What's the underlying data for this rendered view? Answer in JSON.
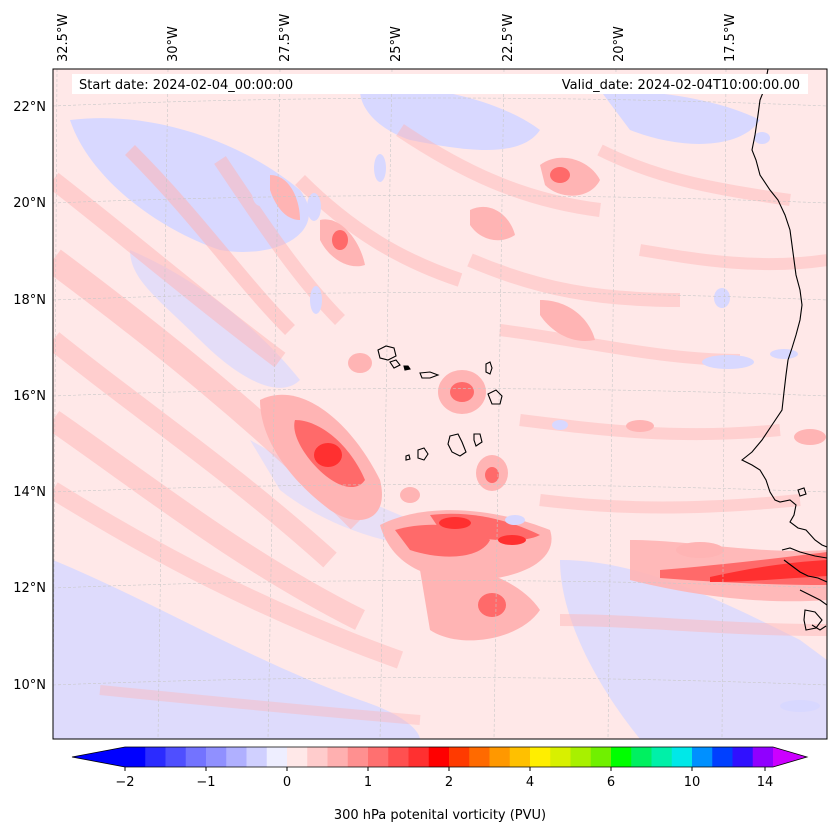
{
  "map": {
    "start_date": "Start date: 2024-02-04_00:00:00",
    "valid_date": "Valid_date: 2024-02-04T10:00:00.00",
    "lon_labels": [
      "32.5°W",
      "30°W",
      "27.5°W",
      "25°W",
      "22.5°W",
      "20°W",
      "17.5°W"
    ],
    "lat_labels": [
      "22°N",
      "20°N",
      "18°N",
      "16°N",
      "14°N",
      "12°N",
      "10°N"
    ],
    "extent": {
      "lon_min": -33.0,
      "lon_max": -15.5,
      "lat_min": 9.0,
      "lat_max": 22.8
    }
  },
  "colorbar": {
    "label": "300 hPa potenital vorticity (PVU)",
    "ticks": [
      "−2",
      "−1",
      "0",
      "1",
      "2",
      "4",
      "6",
      "10",
      "14"
    ],
    "colors": [
      "#0000ff",
      "#2b2bff",
      "#4f4fff",
      "#7373ff",
      "#9090ff",
      "#b0b0ff",
      "#d0d0ff",
      "#eeeeff",
      "#ffe8e8",
      "#ffcccc",
      "#ffb0b0",
      "#ff9090",
      "#ff7070",
      "#ff5050",
      "#ff3030",
      "#ff0000",
      "#ff3a00",
      "#ff6a00",
      "#ff9800",
      "#ffc000",
      "#ffee00",
      "#d8f000",
      "#a8f000",
      "#70f000",
      "#00ff00",
      "#00f060",
      "#00f0a8",
      "#00e8e8",
      "#0090ff",
      "#0040ff",
      "#3010ff",
      "#9000ff"
    ],
    "under_color": "#0000ff",
    "over_color": "#cc00ff"
  },
  "colors": {
    "background_field": "#ffe8e8",
    "low_pv": "#d8d8ff",
    "mid_pv": "#ffb4b4",
    "high_pv": "#ff6a6a",
    "max_pv": "#ff3030",
    "coastline": "#000000"
  }
}
